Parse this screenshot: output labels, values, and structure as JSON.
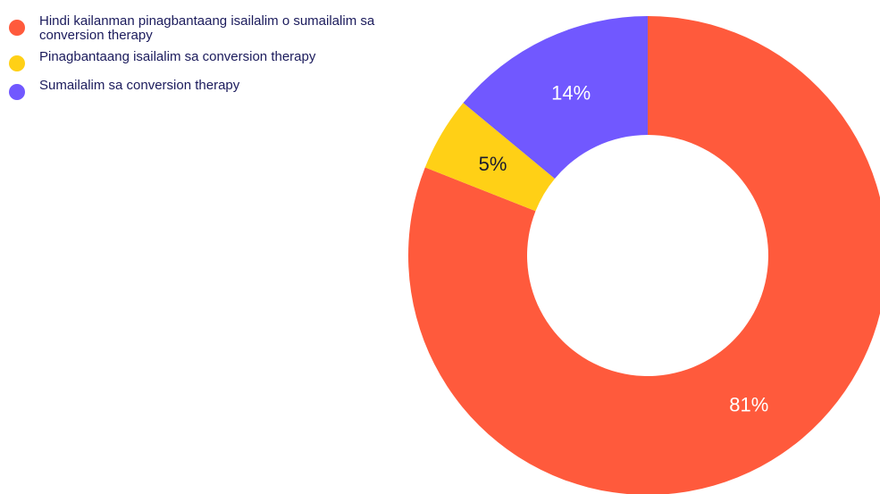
{
  "chart_data": {
    "type": "donut",
    "categories": [
      "Hindi kailanman pinagbantaang isailalim o sumailalim sa conversion therapy",
      "Pinagbantaang isailalim sa conversion therapy",
      "Sumailalim sa conversion therapy"
    ],
    "values": [
      81,
      5,
      14
    ],
    "value_labels": [
      "81%",
      "5%",
      "14%"
    ],
    "colors": [
      "#ff5a3c",
      "#ffd016",
      "#7158ff"
    ],
    "label_colors": [
      "#ffffff",
      "#1b1b2e",
      "#ffffff"
    ],
    "legend": "top-left"
  }
}
